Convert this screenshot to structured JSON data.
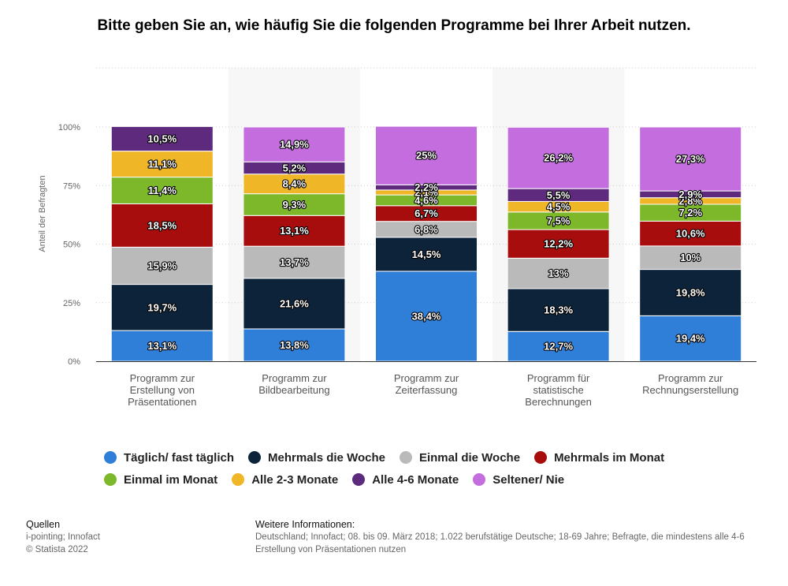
{
  "title": "Bitte geben Sie an, wie häufig Sie die folgenden Programme bei Ihrer Arbeit nutzen.",
  "chart_data": {
    "type": "bar",
    "stacked": true,
    "ylabel": "Anteil der Befragten",
    "ylim": [
      0,
      100
    ],
    "yticks": [
      "0%",
      "25%",
      "50%",
      "75%",
      "100%"
    ],
    "grid": true,
    "legend_position": "bottom",
    "categories": [
      [
        "Programm zur",
        "Erstellung von",
        "Präsentationen"
      ],
      [
        "Programm zur",
        "Bildbearbeitung"
      ],
      [
        "Programm zur",
        "Zeiterfassung"
      ],
      [
        "Programm für",
        "statistische",
        "Berechnungen"
      ],
      [
        "Programm zur",
        "Rechnungserstellung"
      ]
    ],
    "series": [
      {
        "name": "Täglich/ fast täglich",
        "color": "#2f7ed8",
        "values": [
          13.1,
          13.8,
          38.4,
          12.7,
          19.4
        ],
        "labels": [
          "13,1%",
          "13,8%",
          "38,4%",
          "12,7%",
          "19,4%"
        ]
      },
      {
        "name": "Mehrmals die Woche",
        "color": "#0d233a",
        "values": [
          19.7,
          21.6,
          14.5,
          18.3,
          19.8
        ],
        "labels": [
          "19,7%",
          "21,6%",
          "14,5%",
          "18,3%",
          "19,8%"
        ]
      },
      {
        "name": "Einmal die Woche",
        "color": "#bababa",
        "values": [
          15.9,
          13.7,
          6.8,
          13,
          10
        ],
        "labels": [
          "15,9%",
          "13,7%",
          "6,8%",
          "13%",
          "10%"
        ]
      },
      {
        "name": "Mehrmals im Monat",
        "color": "#a80d0d",
        "values": [
          18.5,
          13.1,
          6.7,
          12.2,
          10.6
        ],
        "labels": [
          "18,5%",
          "13,1%",
          "6,7%",
          "12,2%",
          "10,6%"
        ]
      },
      {
        "name": "Einmal im Monat",
        "color": "#7cb82a",
        "values": [
          11.4,
          9.3,
          4.6,
          7.5,
          7.2
        ],
        "labels": [
          "11,4%",
          "9,3%",
          "4,6%",
          "7,5%",
          "7,2%"
        ]
      },
      {
        "name": "Alle 2-3 Monate",
        "color": "#efb627",
        "values": [
          11.1,
          8.4,
          2.1,
          4.5,
          2.8
        ],
        "labels": [
          "11,1%",
          "8,4%",
          "2,1%",
          "4,5%",
          "2,8%"
        ]
      },
      {
        "name": "Alle 4-6 Monate",
        "color": "#5d2a7e",
        "values": [
          10.5,
          5.2,
          2.2,
          5.5,
          2.9
        ],
        "labels": [
          "10,5%",
          "5,2%",
          "2,2%",
          "5,5%",
          "2,9%"
        ]
      },
      {
        "name": "Seltener/ Nie",
        "color": "#c36ddf",
        "values": [
          0,
          14.9,
          25,
          26.2,
          27.3
        ],
        "labels": [
          "",
          "14,9%",
          "25%",
          "26,2%",
          "27,3%"
        ]
      }
    ]
  },
  "legend_rows": [
    [
      0,
      1,
      2,
      3
    ],
    [
      4,
      5,
      6,
      7
    ]
  ],
  "footer": {
    "sources_title": "Quellen",
    "sources": "i-pointing; Innofact",
    "copyright": "© Statista 2022",
    "info_title": "Weitere Informationen:",
    "info_line1": "Deutschland; Innofact; 08. bis 09. März 2018; 1.022 berufstätige Deutsche; 18-69 Jahre; Befragte, die mindestens alle 4-6",
    "info_line2": "Erstellung von Präsentationen nutzen"
  }
}
